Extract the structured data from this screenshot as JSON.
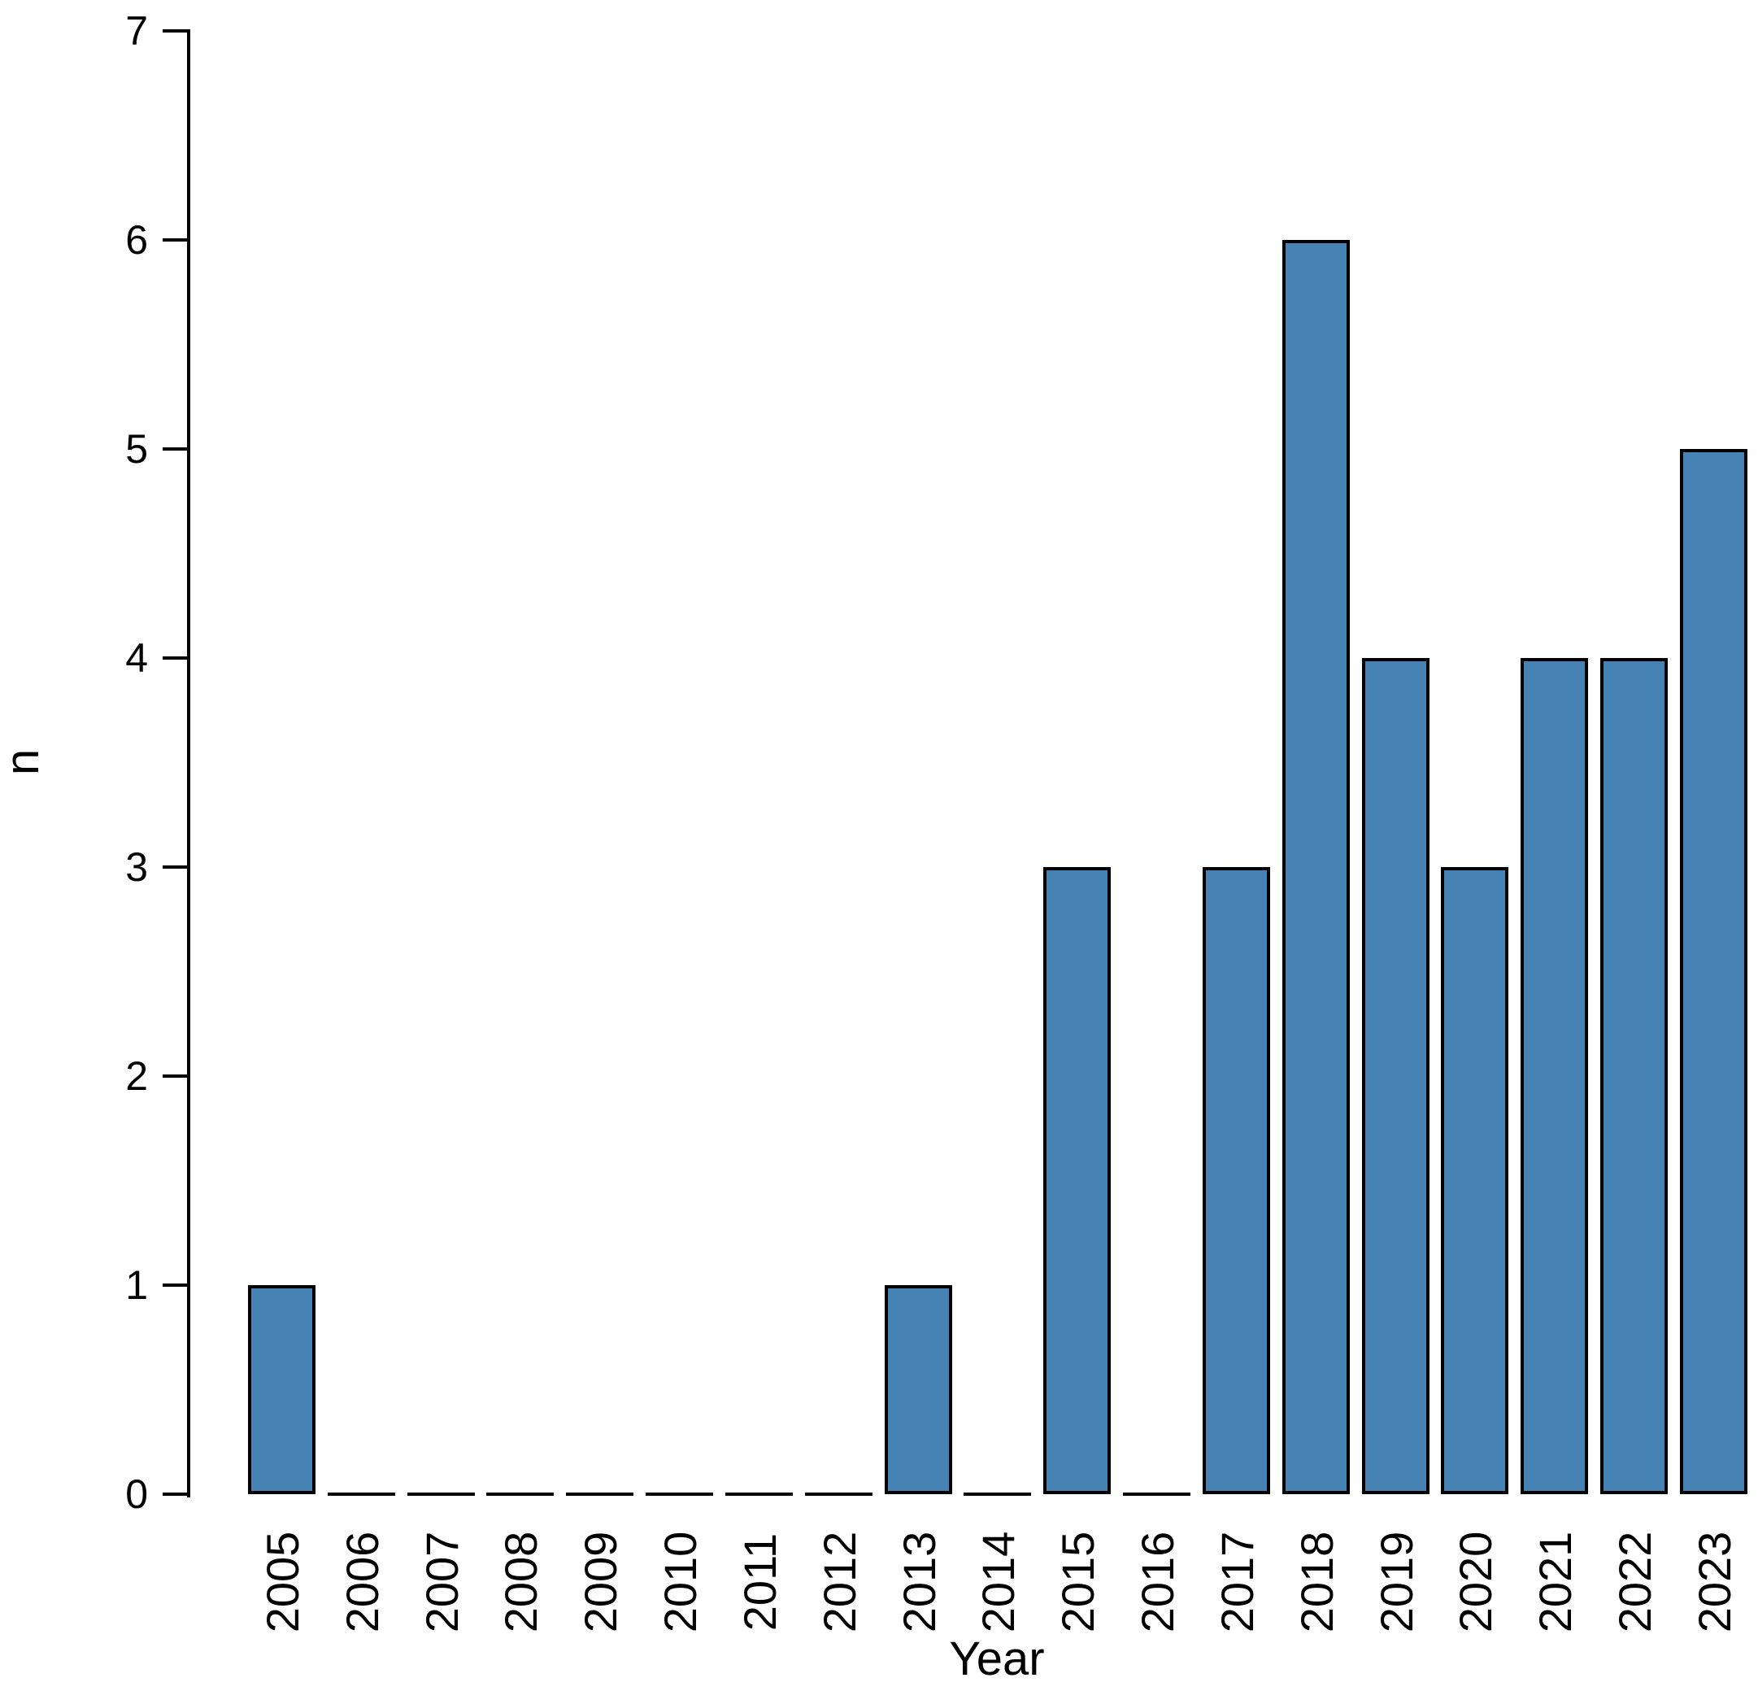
{
  "chart_data": {
    "type": "bar",
    "title": "",
    "xlabel": "Year",
    "ylabel": "n",
    "categories": [
      "2005",
      "2006",
      "2007",
      "2008",
      "2009",
      "2010",
      "2011",
      "2012",
      "2013",
      "2014",
      "2015",
      "2016",
      "2017",
      "2018",
      "2019",
      "2020",
      "2021",
      "2022",
      "2023"
    ],
    "values": [
      1,
      0,
      0,
      0,
      0,
      0,
      0,
      0,
      1,
      0,
      3,
      0,
      3,
      6,
      4,
      3,
      4,
      4,
      5
    ],
    "ylim": [
      0,
      7
    ],
    "yticks": [
      0,
      1,
      2,
      3,
      4,
      5,
      6,
      7
    ],
    "grid": false,
    "legend": false,
    "bar_color": "#4682B4",
    "bar_border_color": "#000000",
    "axis_color": "#000000",
    "text_color": "#000000"
  }
}
